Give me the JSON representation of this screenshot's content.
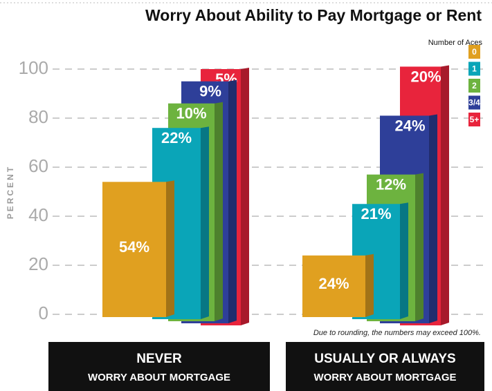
{
  "chart_data": {
    "type": "bar",
    "stacked": true,
    "title": "Worry About Ability to Pay Mortgage or Rent",
    "y_label": "PERCENT",
    "legend_title": "Number of Aces",
    "note": "Due to rounding, the numbers may exceed 100%.",
    "categories": [
      "NEVER",
      "USUALLY OR ALWAYS"
    ],
    "category_subtitles": [
      "WORRY ABOUT MORTGAGE",
      "WORRY ABOUT MORTGAGE"
    ],
    "series": [
      {
        "name": "0",
        "color": "#e0a020",
        "values": [
          54,
          24
        ],
        "value_labels": [
          "54%",
          "24%"
        ]
      },
      {
        "name": "1",
        "color": "#0aa5b8",
        "values": [
          22,
          21
        ],
        "value_labels": [
          "22%",
          "21%"
        ]
      },
      {
        "name": "2",
        "color": "#6db33f",
        "values": [
          10,
          12
        ],
        "value_labels": [
          "10%",
          "12%"
        ]
      },
      {
        "name": "3/4",
        "color": "#2e3f99",
        "values": [
          9,
          24
        ],
        "value_labels": [
          "9%",
          "24%"
        ]
      },
      {
        "name": "5+",
        "color": "#e8243c",
        "values": [
          5,
          20
        ],
        "value_labels": [
          "5%",
          "20%"
        ]
      }
    ],
    "ylim": [
      0,
      100
    ],
    "yticks": [
      0,
      20,
      40,
      60,
      80,
      100
    ],
    "grid": true
  }
}
